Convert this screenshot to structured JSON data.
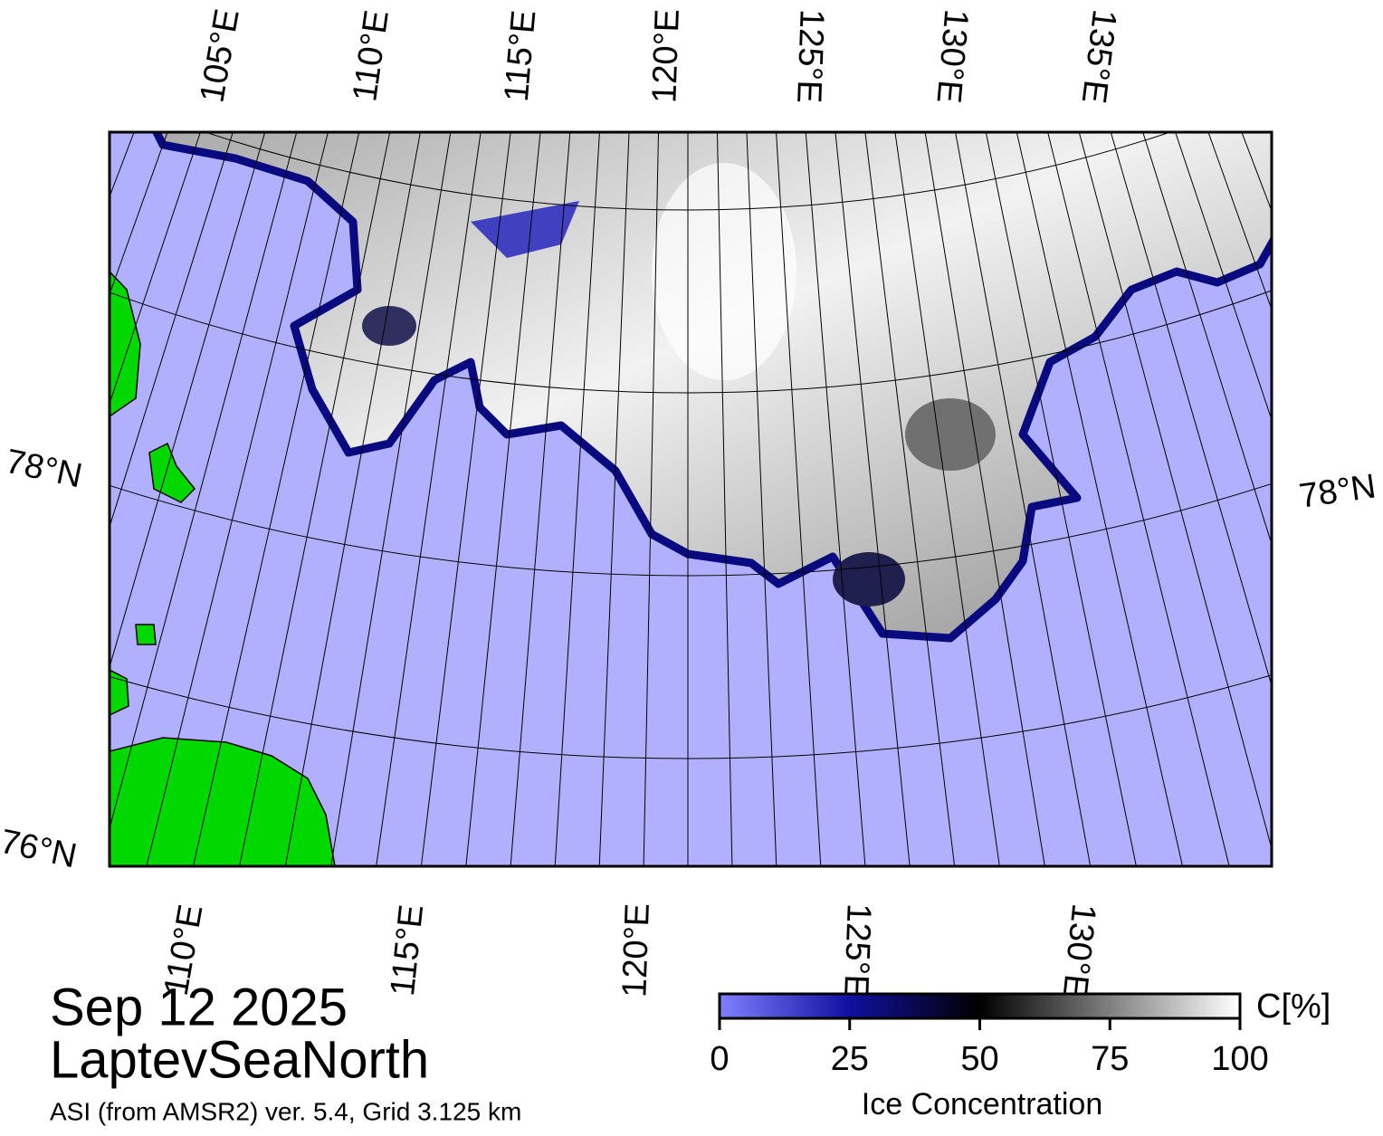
{
  "title": {
    "date": "Sep 12 2025",
    "region": "LaptevSeaNorth",
    "source": "ASI (from AMSR2) ver. 5.4,  Grid 3.125 km"
  },
  "map": {
    "top_lon_labels": [
      "105°E",
      "110°E",
      "115°E",
      "120°E",
      "125°E",
      "130°E",
      "135°E"
    ],
    "bottom_lon_labels": [
      "110°E",
      "115°E",
      "120°E",
      "125°E",
      "130°E"
    ],
    "left_lat_labels": [
      "78°N",
      "76°N"
    ],
    "right_lat_labels": [
      "78°N"
    ]
  },
  "colorbar": {
    "label": "Ice Concentration",
    "unit": "C[%]",
    "lim": [
      0,
      100
    ],
    "ticks": [
      0,
      25,
      50,
      75,
      100
    ]
  }
}
